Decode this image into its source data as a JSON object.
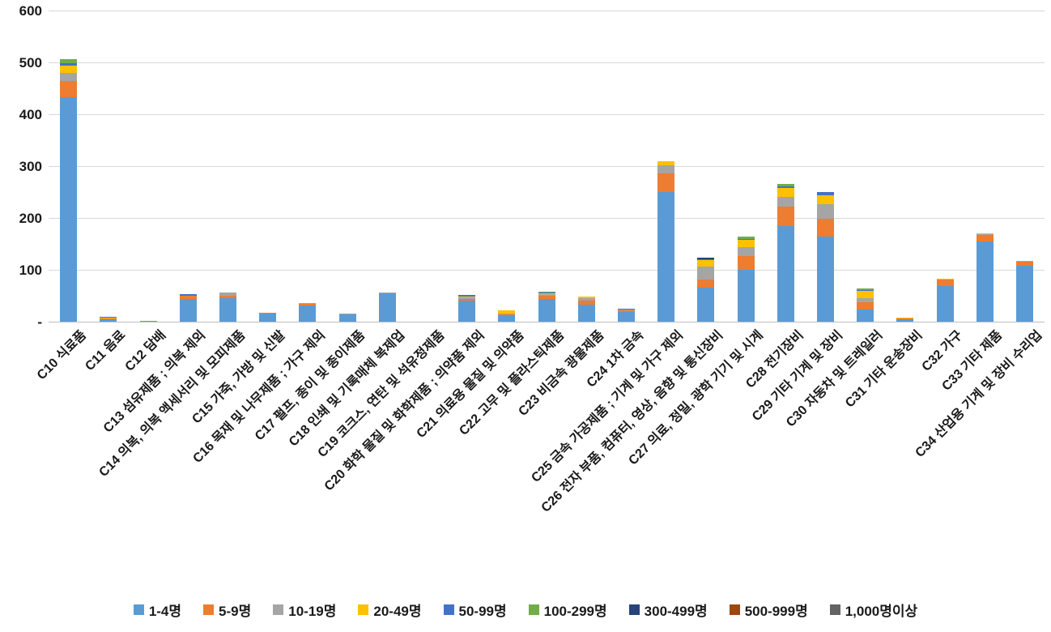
{
  "chart_data": {
    "type": "bar",
    "stacked": true,
    "title": "",
    "xlabel": "",
    "ylabel": "",
    "ylim": [
      0,
      600
    ],
    "yticks": [
      0,
      100,
      200,
      300,
      400,
      500,
      600
    ],
    "ytick_labels": [
      "-",
      "100",
      "200",
      "300",
      "400",
      "500",
      "600"
    ],
    "grid": true,
    "legend_position": "bottom",
    "categories": [
      "C10 식료품",
      "C11 음료",
      "C12 담배",
      "C13 섬유제품 ; 의복 제외",
      "C14 의복, 의복 액세서리 및 모피제품",
      "C15 가죽, 가방 및 신발",
      "C16 목재 및 나무제품 ; 가구 제외",
      "C17 펄프, 종이 및 종이제품",
      "C18 인쇄 및 기록매체 복제업",
      "C19 코크스, 연탄 및 석유정제품",
      "C20 화학 물질 및 화학제품 ; 의약품 제외",
      "C21 의료용 물질 및 의약품",
      "C22 고무 및 플라스틱제품",
      "C23 비금속 광물제품",
      "C24 1차 금속",
      "C25 금속 가공제품 ; 기계 및 가구 제외",
      "C26 전자 부품, 컴퓨터, 영상, 음향 및 통신장비",
      "C27 의료, 정밀, 광학 기기 및 시계",
      "C28 전기장비",
      "C29 기타 기계 및 장비",
      "C30 자동차 및 트레일러",
      "C31 기타 운송장비",
      "C32 가구",
      "C33 기타 제품",
      "C34 산업용 기계 및 장비 수리업"
    ],
    "series": [
      {
        "name": "1-4명",
        "color": "#5B9BD5",
        "values": [
          433,
          6,
          0,
          43,
          45,
          15,
          32,
          14,
          54,
          0,
          40,
          13,
          44,
          33,
          18,
          250,
          66,
          100,
          184,
          164,
          24,
          5,
          68,
          155,
          108
        ]
      },
      {
        "name": "5-9명",
        "color": "#ED7D31",
        "values": [
          31,
          1,
          0,
          7,
          5,
          2,
          3,
          0,
          0,
          0,
          4,
          2,
          6,
          7,
          4,
          36,
          16,
          26,
          38,
          34,
          13,
          1,
          13,
          13,
          8
        ]
      },
      {
        "name": "10-19명",
        "color": "#A5A5A5",
        "values": [
          16,
          0,
          0,
          0,
          6,
          0,
          1,
          2,
          2,
          0,
          3,
          1,
          3,
          5,
          1,
          15,
          25,
          18,
          18,
          28,
          9,
          0,
          0,
          1,
          1
        ]
      },
      {
        "name": "20-49명",
        "color": "#FFC000",
        "values": [
          13,
          2,
          0,
          0,
          0,
          0,
          0,
          0,
          0,
          0,
          2,
          6,
          2,
          3,
          0,
          8,
          11,
          14,
          18,
          17,
          13,
          2,
          2,
          2,
          0
        ]
      },
      {
        "name": "50-99명",
        "color": "#4472C4",
        "values": [
          6,
          1,
          0,
          3,
          0,
          0,
          0,
          0,
          0,
          0,
          3,
          0,
          2,
          0,
          2,
          0,
          3,
          2,
          3,
          7,
          2,
          0,
          0,
          0,
          0
        ]
      },
      {
        "name": "100-299명",
        "color": "#70AD47",
        "values": [
          7,
          0,
          2,
          0,
          0,
          0,
          0,
          0,
          0,
          0,
          0,
          0,
          1,
          0,
          0,
          0,
          0,
          4,
          4,
          0,
          3,
          0,
          0,
          0,
          0
        ]
      },
      {
        "name": "300-499명",
        "color": "#264478",
        "values": [
          0,
          0,
          0,
          0,
          0,
          0,
          0,
          0,
          0,
          0,
          0,
          0,
          0,
          0,
          0,
          0,
          3,
          0,
          0,
          0,
          0,
          0,
          0,
          0,
          0
        ]
      },
      {
        "name": "500-999명",
        "color": "#9E480E",
        "values": [
          0,
          0,
          0,
          0,
          0,
          0,
          0,
          0,
          0,
          0,
          0,
          0,
          0,
          0,
          0,
          0,
          0,
          0,
          0,
          0,
          0,
          0,
          0,
          0,
          0
        ]
      },
      {
        "name": "1,000명이상",
        "color": "#636363",
        "values": [
          0,
          0,
          0,
          0,
          0,
          0,
          0,
          0,
          0,
          0,
          0,
          0,
          0,
          0,
          0,
          0,
          0,
          0,
          0,
          0,
          0,
          0,
          0,
          0,
          0
        ]
      }
    ]
  },
  "layout_colors": {
    "gridline": "#d9d9d9",
    "axis": "#bfbfbf",
    "text": "#1a1a1a",
    "background": "#ffffff"
  }
}
